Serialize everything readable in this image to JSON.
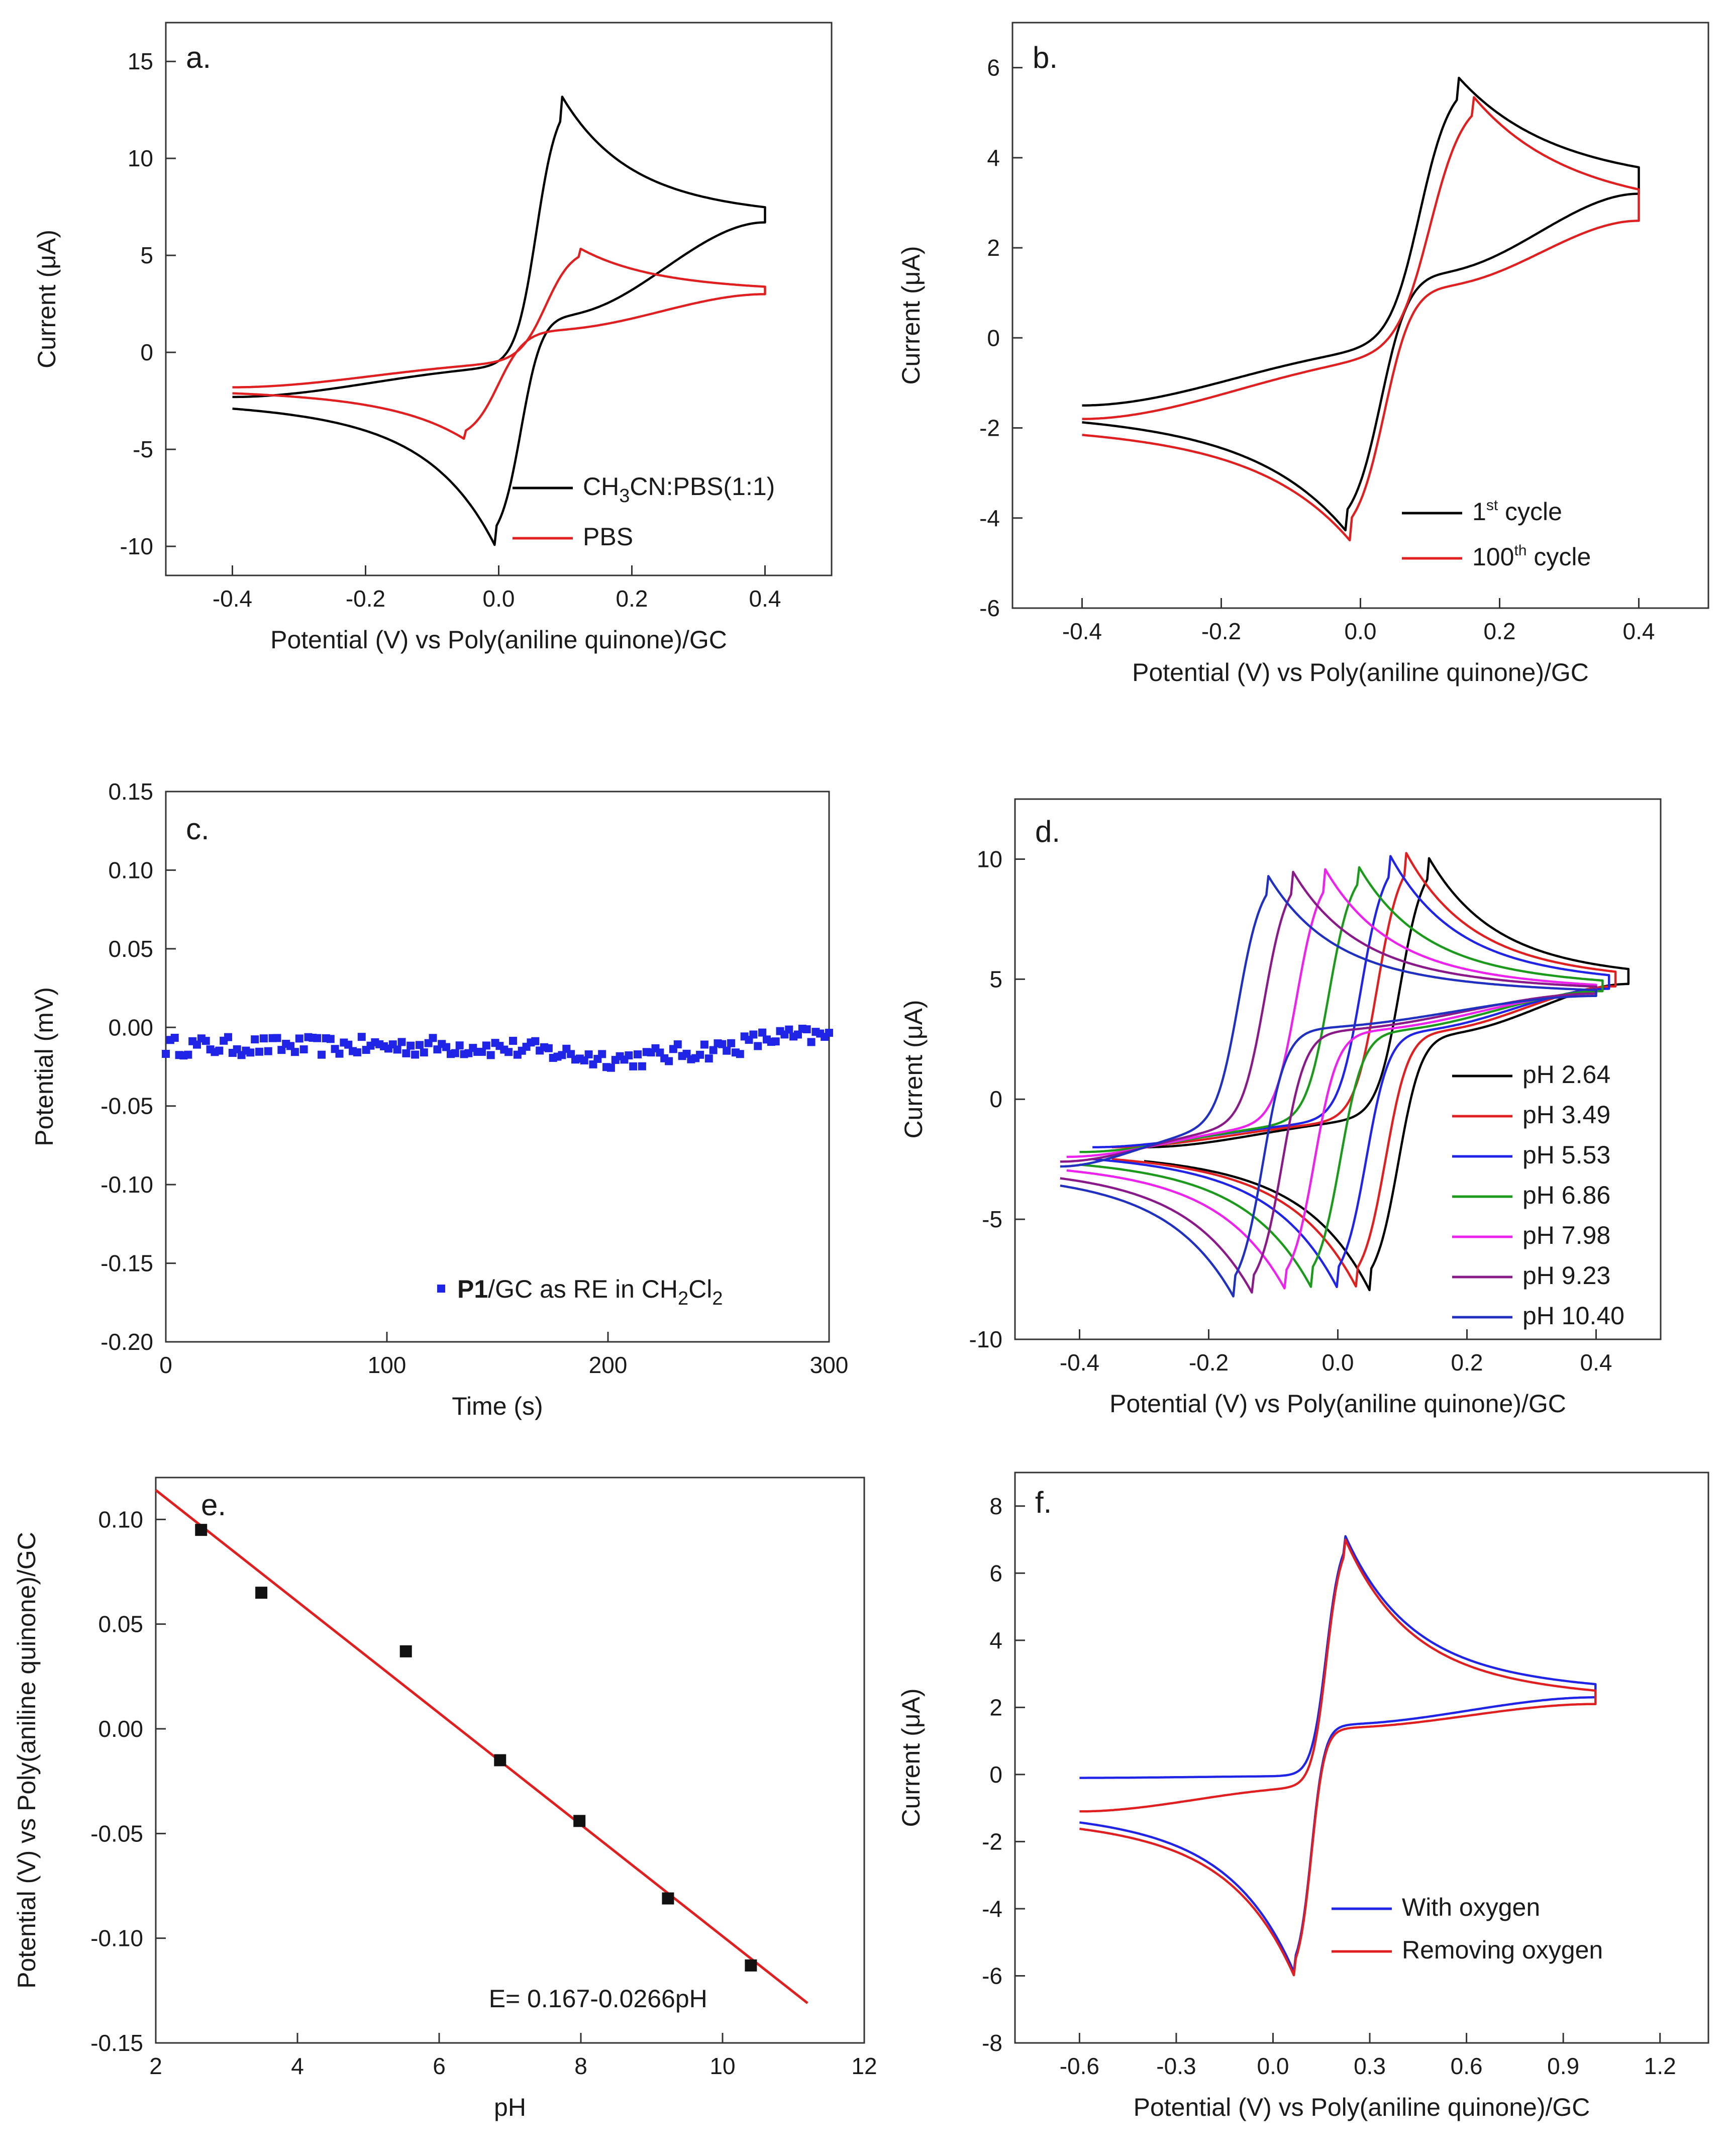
{
  "chart_data": [
    {
      "id": "a",
      "type": "line",
      "panel_label": "a.",
      "xlabel": "Potential (V) vs Poly(aniline quinone)/GC",
      "ylabel": "Current (μA)",
      "xlim": [
        -0.5,
        0.5
      ],
      "ylim": [
        -11.5,
        17
      ],
      "xticks": [
        -0.4,
        -0.2,
        0.0,
        0.2,
        0.4
      ],
      "xtick_labels": [
        "-0.4",
        "-0.2",
        "0.0",
        "0.2",
        "0.4"
      ],
      "yticks": [
        -10,
        -5,
        0,
        5,
        10,
        15
      ],
      "ytick_labels": [
        "-10",
        "-5",
        "0",
        "5",
        "10",
        "15"
      ],
      "legend": [
        "CH3CN:PBS(1:1)",
        "PBS"
      ],
      "series": [
        {
          "name": "CH3CN:PBS(1:1)",
          "color": "#000000",
          "cv": {
            "x1": -0.4,
            "x2": 0.4,
            "Epa": 0.095,
            "Ipa": 13.2,
            "Epc": -0.005,
            "Ipc": -10.0,
            "start": -2.3,
            "end": 6.7,
            "bl_up_start": -2.3,
            "bl_up_mid": -0.8,
            "bl_dn_mid": 2.0,
            "wa": 0.035,
            "wc": 0.035,
            "tau": 0.09
          }
        },
        {
          "name": "PBS",
          "color": "#e02020",
          "cv": {
            "x1": -0.4,
            "x2": 0.4,
            "Epa": 0.12,
            "Ipa": 5.4,
            "Epc": -0.05,
            "Ipc": -4.5,
            "start": -1.8,
            "end": 3.0,
            "bl_up_start": -1.8,
            "bl_up_mid": -0.6,
            "bl_dn_mid": 1.2,
            "wa": 0.045,
            "wc": 0.045,
            "tau": 0.1
          }
        }
      ]
    },
    {
      "id": "b",
      "type": "line",
      "panel_label": "b.",
      "xlabel": "Potential (V) vs Poly(aniline quinone)/GC",
      "ylabel": "Current (μA)",
      "xlim": [
        -0.5,
        0.5
      ],
      "ylim": [
        -6,
        7
      ],
      "xticks": [
        -0.4,
        -0.2,
        0.0,
        0.2,
        0.4
      ],
      "xtick_labels": [
        "-0.4",
        "-0.2",
        "0.0",
        "0.2",
        "0.4"
      ],
      "yticks": [
        -6,
        -4,
        -2,
        0,
        2,
        4,
        6
      ],
      "ytick_labels": [
        "-6",
        "-4",
        "-2",
        "0",
        "2",
        "4",
        "6"
      ],
      "legend": [
        "1st cycle",
        "100th cycle"
      ],
      "legend_main": [
        "1",
        "100"
      ],
      "legend_sup": [
        "st",
        "th"
      ],
      "legend_tail": [
        " cycle",
        " cycle"
      ],
      "series": [
        {
          "name": "1st cycle",
          "color": "#000000",
          "cv": {
            "x1": -0.4,
            "x2": 0.4,
            "Epa": 0.14,
            "Ipa": 5.8,
            "Epc": -0.02,
            "Ipc": -4.3,
            "start": -1.5,
            "end": 3.2,
            "bl_up_start": -1.5,
            "bl_up_mid": -0.3,
            "bl_dn_mid": 1.5,
            "wa": 0.05,
            "wc": 0.045,
            "tau": 0.12
          }
        },
        {
          "name": "100th cycle",
          "color": "#e02020",
          "cv": {
            "x1": -0.4,
            "x2": 0.4,
            "Epa": 0.16,
            "Ipa": 5.4,
            "Epc": -0.015,
            "Ipc": -4.5,
            "start": -1.8,
            "end": 2.6,
            "bl_up_start": -1.8,
            "bl_up_mid": -0.5,
            "bl_dn_mid": 1.2,
            "wa": 0.055,
            "wc": 0.045,
            "tau": 0.12
          }
        }
      ]
    },
    {
      "id": "c",
      "type": "scatter",
      "panel_label": "c.",
      "xlabel": "Time (s)",
      "ylabel": "Potential (mV)",
      "xlim": [
        0,
        300
      ],
      "ylim": [
        -0.2,
        0.15
      ],
      "xticks": [
        0,
        100,
        200,
        300
      ],
      "xtick_labels": [
        "0",
        "100",
        "200",
        "300"
      ],
      "yticks": [
        -0.2,
        -0.15,
        -0.1,
        -0.05,
        0.0,
        0.05,
        0.1,
        0.15
      ],
      "ytick_labels": [
        "-0.20",
        "-0.15",
        "-0.10",
        "-0.05",
        "0.00",
        "0.05",
        "0.10",
        "0.15"
      ],
      "legend": [
        "P1/GC as RE in CH2Cl2"
      ],
      "legend_bold": "P1",
      "legend_rest": "/GC as RE in CH",
      "legend_sub1": "2",
      "legend_mid": "Cl",
      "legend_sub2": "2",
      "series": [
        {
          "name": "P1/GC as RE in CH2Cl2",
          "color": "#1f24e6",
          "x_range": [
            0,
            300
          ],
          "n": 150,
          "mean": -0.012,
          "noise": 0.006,
          "dip": {
            "x": 205,
            "w": 25,
            "depth": -0.008
          },
          "rise": {
            "x": 280,
            "w": 30,
            "amount": 0.006
          }
        }
      ]
    },
    {
      "id": "d",
      "type": "line",
      "panel_label": "d.",
      "xlabel": "Potential (V) vs Poly(aniline quinone)/GC",
      "ylabel": "Current (μA)",
      "xlim": [
        -0.5,
        0.5
      ],
      "ylim": [
        -10,
        12.5
      ],
      "xticks": [
        -0.4,
        -0.2,
        0.0,
        0.2,
        0.4
      ],
      "xtick_labels": [
        "-0.4",
        "-0.2",
        "0.0",
        "0.2",
        "0.4"
      ],
      "yticks": [
        -10,
        -5,
        0,
        5,
        10
      ],
      "ytick_labels": [
        "-10",
        "-5",
        "0",
        "5",
        "10"
      ],
      "legend": [
        "pH 2.64",
        "pH 3.49",
        "pH 5.53",
        "pH 6.86",
        "pH 7.98",
        "pH 9.23",
        "pH 10.40"
      ],
      "series": [
        {
          "name": "pH 2.64",
          "color": "#000000",
          "cv": {
            "x1": -0.3,
            "x2": 0.45,
            "Epa": 0.14,
            "Ipa": 10.1,
            "Epc": 0.05,
            "Ipc": -8.0,
            "start": -2.0,
            "end": 4.8,
            "bl_up_start": -2.0,
            "bl_up_mid": -0.9,
            "bl_dn_mid": 2.8,
            "wa": 0.04,
            "wc": 0.04,
            "tau": 0.09
          }
        },
        {
          "name": "pH 3.49",
          "color": "#e02020",
          "cv": {
            "x1": -0.35,
            "x2": 0.43,
            "Epa": 0.105,
            "Ipa": 10.3,
            "Epc": 0.03,
            "Ipc": -7.9,
            "start": -2.0,
            "end": 4.7,
            "bl_up_start": -2.0,
            "bl_up_mid": -1.0,
            "bl_dn_mid": 2.9,
            "wa": 0.04,
            "wc": 0.04,
            "tau": 0.09
          }
        },
        {
          "name": "pH 5.53",
          "color": "#1f24e6",
          "cv": {
            "x1": -0.38,
            "x2": 0.42,
            "Epa": 0.08,
            "Ipa": 10.2,
            "Epc": 0.0,
            "Ipc": -7.9,
            "start": -2.0,
            "end": 4.6,
            "bl_up_start": -2.0,
            "bl_up_mid": -1.0,
            "bl_dn_mid": 2.9,
            "wa": 0.04,
            "wc": 0.04,
            "tau": 0.09
          }
        },
        {
          "name": "pH 6.86",
          "color": "#1c9a1c",
          "cv": {
            "x1": -0.4,
            "x2": 0.41,
            "Epa": 0.03,
            "Ipa": 9.8,
            "Epc": -0.04,
            "Ipc": -7.9,
            "start": -2.2,
            "end": 4.5,
            "bl_up_start": -2.2,
            "bl_up_mid": -1.1,
            "bl_dn_mid": 2.9,
            "wa": 0.04,
            "wc": 0.04,
            "tau": 0.09
          }
        },
        {
          "name": "pH 7.98",
          "color": "#ee22ee",
          "cv": {
            "x1": -0.42,
            "x2": 0.4,
            "Epa": -0.02,
            "Ipa": 9.6,
            "Epc": -0.08,
            "Ipc": -8.0,
            "start": -2.4,
            "end": 4.4,
            "bl_up_start": -2.4,
            "bl_up_mid": -1.2,
            "bl_dn_mid": 2.9,
            "wa": 0.04,
            "wc": 0.04,
            "tau": 0.09
          }
        },
        {
          "name": "pH 9.23",
          "color": "#8a1a8a",
          "cv": {
            "x1": -0.43,
            "x2": 0.4,
            "Epa": -0.07,
            "Ipa": 9.5,
            "Epc": -0.13,
            "Ipc": -8.2,
            "start": -2.6,
            "end": 4.4,
            "bl_up_start": -2.6,
            "bl_up_mid": -1.3,
            "bl_dn_mid": 2.9,
            "wa": 0.04,
            "wc": 0.04,
            "tau": 0.09
          }
        },
        {
          "name": "pH 10.40",
          "color": "#2030c0",
          "cv": {
            "x1": -0.43,
            "x2": 0.4,
            "Epa": -0.11,
            "Ipa": 9.4,
            "Epc": -0.16,
            "Ipc": -8.3,
            "start": -2.8,
            "end": 4.3,
            "bl_up_start": -2.8,
            "bl_up_mid": -1.4,
            "bl_dn_mid": 3.0,
            "wa": 0.04,
            "wc": 0.04,
            "tau": 0.09
          }
        }
      ]
    },
    {
      "id": "e",
      "type": "scatter",
      "panel_label": "e.",
      "xlabel": "pH",
      "ylabel": "Potential (V) vs Poly(aniline quinone)/GC",
      "xlim": [
        2,
        12
      ],
      "ylim": [
        -0.15,
        0.12
      ],
      "xticks": [
        2,
        4,
        6,
        8,
        10,
        12
      ],
      "xtick_labels": [
        "2",
        "4",
        "6",
        "8",
        "10",
        "12"
      ],
      "yticks": [
        -0.15,
        -0.1,
        -0.05,
        0.0,
        0.05,
        0.1
      ],
      "ytick_labels": [
        "-0.15",
        "-0.10",
        "-0.05",
        "0.00",
        "0.05",
        "0.10"
      ],
      "points": {
        "x": [
          2.64,
          3.49,
          5.53,
          6.86,
          7.98,
          9.23,
          10.4
        ],
        "y": [
          0.095,
          0.065,
          0.037,
          -0.015,
          -0.044,
          -0.081,
          -0.113
        ]
      },
      "fit": {
        "x": [
          2.0,
          11.2
        ],
        "y": [
          0.114,
          -0.131
        ],
        "color": "#e02020"
      },
      "annotation": "E= 0.167-0.0266pH"
    },
    {
      "id": "f",
      "type": "line",
      "panel_label": "f.",
      "xlabel": "Potential (V) vs Poly(aniline quinone)/GC",
      "ylabel": "Current (μA)",
      "xlim": [
        -0.8,
        1.35
      ],
      "ylim": [
        -8,
        9
      ],
      "xticks": [
        -0.6,
        -0.3,
        0.0,
        0.3,
        0.6,
        0.9,
        1.2
      ],
      "xtick_labels": [
        "-0.6",
        "-0.3",
        "0.0",
        "0.3",
        "0.6",
        "0.9",
        "1.2"
      ],
      "yticks": [
        -8,
        -6,
        -4,
        -2,
        0,
        2,
        4,
        6,
        8
      ],
      "ytick_labels": [
        "-8",
        "-6",
        "-4",
        "-2",
        "0",
        "2",
        "4",
        "6",
        "8"
      ],
      "legend": [
        "With oxygen",
        "Removing oxygen"
      ],
      "series": [
        {
          "name": "With oxygen",
          "color": "#1f24e6",
          "cv": {
            "x1": -0.6,
            "x2": 1.0,
            "Epa": 0.22,
            "Ipa": 7.2,
            "Epc": 0.07,
            "Ipc": -6.0,
            "start": -0.1,
            "end": 2.3,
            "bl_up_start": -0.1,
            "bl_up_mid": -0.05,
            "bl_dn_mid": 1.5,
            "wa": 0.05,
            "wc": 0.045,
            "tau": 0.18,
            "start_dn": -0.9
          }
        },
        {
          "name": "Removing oxygen",
          "color": "#e02020",
          "cv": {
            "x1": -0.6,
            "x2": 1.0,
            "Epa": 0.22,
            "Ipa": 7.1,
            "Epc": 0.07,
            "Ipc": -6.1,
            "start": -1.1,
            "end": 2.1,
            "bl_up_start": -1.1,
            "bl_up_mid": -0.4,
            "bl_dn_mid": 1.4,
            "wa": 0.05,
            "wc": 0.045,
            "tau": 0.18
          }
        }
      ]
    }
  ]
}
